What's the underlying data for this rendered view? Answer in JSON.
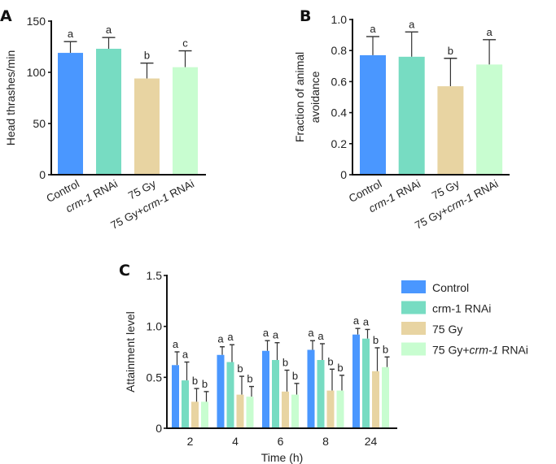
{
  "colors": {
    "Control": "#4a97ff",
    "crm-1 RNAi": "#77dcc2",
    "75 Gy": "#e8d4a2",
    "75 Gy+crm-1 RNAi": "#c8fdd0"
  },
  "chart_data": [
    {
      "panel": "A",
      "type": "bar",
      "title": "",
      "xlabel": "",
      "ylabel": "Head thrashes/min",
      "ylim": [
        0,
        150
      ],
      "yticks": [
        0,
        50,
        100,
        150
      ],
      "categories": [
        {
          "pre": "",
          "ital": "",
          "post": "Control"
        },
        {
          "pre": "",
          "ital": "crm-1",
          "post": " RNAi"
        },
        {
          "pre": "75 Gy",
          "ital": "",
          "post": ""
        },
        {
          "pre": "75 Gy+",
          "ital": "crm-1",
          "post": " RNAi"
        }
      ],
      "category_names": [
        "Control",
        "crm-1 RNAi",
        "75 Gy",
        "75 Gy+crm-1 RNAi"
      ],
      "values": [
        119,
        123,
        94,
        105
      ],
      "error_upper": [
        130,
        134,
        109,
        121
      ],
      "significance": [
        "a",
        "a",
        "b",
        "c"
      ]
    },
    {
      "panel": "B",
      "type": "bar",
      "title": "",
      "xlabel": "",
      "ylabel": [
        "Fraction of animal",
        "avoidance"
      ],
      "ylim": [
        0,
        1.0
      ],
      "yticks": [
        "0",
        "0.2",
        "0.4",
        "0.6",
        "0.8",
        "1.0"
      ],
      "categories": [
        {
          "pre": "",
          "ital": "",
          "post": "Control"
        },
        {
          "pre": "",
          "ital": "crm-1",
          "post": " RNAi"
        },
        {
          "pre": "75 Gy",
          "ital": "",
          "post": ""
        },
        {
          "pre": "75 Gy+",
          "ital": "crm-1",
          "post": " RNAi"
        }
      ],
      "category_names": [
        "Control",
        "crm-1 RNAi",
        "75 Gy",
        "75 Gy+crm-1 RNAi"
      ],
      "values": [
        0.77,
        0.76,
        0.57,
        0.71
      ],
      "error_upper": [
        0.89,
        0.92,
        0.75,
        0.87
      ],
      "significance": [
        "a",
        "a",
        "b",
        "a"
      ]
    },
    {
      "panel": "C",
      "type": "bar",
      "title": "",
      "xlabel": "Time (h)",
      "ylabel": "Attainment level",
      "ylim": [
        0,
        1.5
      ],
      "yticks": [
        "0",
        "0.5",
        "1.0",
        "1.5"
      ],
      "categories": [
        "2",
        "4",
        "6",
        "8",
        "24"
      ],
      "legend_position": "right",
      "legend": [
        {
          "pre": "Control",
          "ital": "",
          "post": ""
        },
        {
          "pre": "crm-1 RNAi",
          "ital": "",
          "post": ""
        },
        {
          "pre": "75 Gy",
          "ital": "",
          "post": ""
        },
        {
          "pre": "75 Gy+",
          "ital": "crm-1",
          "post": " RNAi"
        }
      ],
      "series": [
        {
          "name": "Control",
          "values": [
            0.62,
            0.72,
            0.76,
            0.77,
            0.92
          ],
          "error_upper": [
            0.75,
            0.8,
            0.86,
            0.86,
            0.98
          ],
          "significance": [
            "a",
            "a",
            "a",
            "a",
            "a"
          ]
        },
        {
          "name": "crm-1 RNAi",
          "values": [
            0.47,
            0.65,
            0.67,
            0.67,
            0.88
          ],
          "error_upper": [
            0.65,
            0.82,
            0.84,
            0.83,
            0.97
          ],
          "significance": [
            "a",
            "a",
            "a",
            "a",
            "a"
          ]
        },
        {
          "name": "75 Gy",
          "values": [
            0.26,
            0.33,
            0.36,
            0.37,
            0.56
          ],
          "error_upper": [
            0.39,
            0.51,
            0.57,
            0.58,
            0.79
          ],
          "significance": [
            "b",
            "b",
            "b",
            "b",
            "b"
          ]
        },
        {
          "name": "75 Gy+crm-1 RNAi",
          "values": [
            0.26,
            0.31,
            0.33,
            0.37,
            0.6
          ],
          "error_upper": [
            0.36,
            0.41,
            0.44,
            0.52,
            0.7
          ],
          "significance": [
            "b",
            "b",
            "b",
            "b",
            "b"
          ]
        }
      ]
    }
  ],
  "panel_letters": [
    "A",
    "B",
    "C"
  ]
}
